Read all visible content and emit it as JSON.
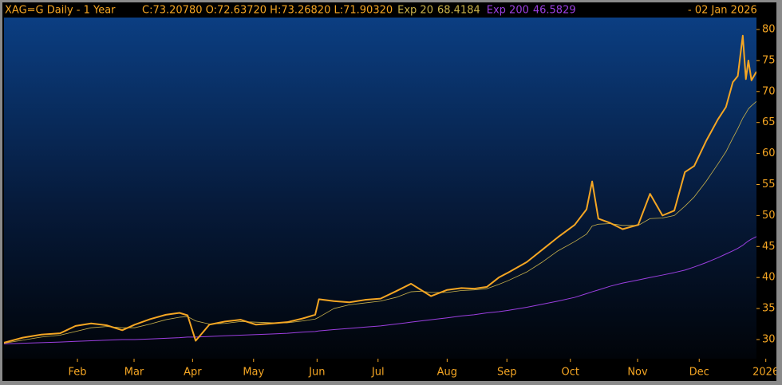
{
  "chart_data": {
    "type": "line",
    "title": "XAG=G Daily -  1 Year",
    "quote": "C:73.20780 O:72.63720 H:73.26820 L:71.90320",
    "date": "-    02 Jan 2026",
    "x": [
      0,
      0.3,
      0.6,
      0.9,
      1.15,
      1.4,
      1.65,
      1.9,
      2.1,
      2.35,
      2.6,
      2.82,
      2.95,
      3.08,
      3.3,
      3.55,
      3.8,
      4.05,
      4.3,
      4.55,
      4.8,
      5.0,
      5.06,
      5.3,
      5.55,
      5.8,
      6.05,
      6.3,
      6.54,
      6.7,
      6.86,
      7.12,
      7.35,
      7.55,
      7.76,
      7.95,
      8.1,
      8.4,
      8.65,
      8.9,
      9.17,
      9.36,
      9.45,
      9.55,
      9.74,
      9.94,
      10.19,
      10.38,
      10.58,
      10.77,
      10.94,
      11.09,
      11.28,
      11.47,
      11.6,
      11.71,
      11.79,
      11.87,
      11.92,
      11.96,
      12.01,
      12.09
    ],
    "series": [
      {
        "color": "#f5a623",
        "width": 2,
        "values": [
          29.5,
          30.3,
          30.8,
          31.0,
          32.2,
          32.6,
          32.3,
          31.5,
          32.4,
          33.3,
          34.0,
          34.3,
          33.9,
          29.8,
          32.4,
          32.9,
          33.2,
          32.4,
          32.6,
          32.8,
          33.4,
          34.0,
          36.5,
          36.2,
          36.0,
          36.4,
          36.6,
          37.8,
          39.0,
          38.0,
          37.0,
          38.0,
          38.3,
          38.2,
          38.5,
          40.0,
          40.8,
          42.5,
          44.5,
          46.5,
          48.5,
          51.0,
          55.5,
          49.5,
          48.8,
          47.8,
          48.5,
          53.5,
          50.0,
          50.8,
          57.0,
          58.0,
          62.0,
          65.5,
          67.5,
          71.5,
          72.5,
          79.0,
          72.0,
          75.0,
          71.8,
          73.2
        ]
      },
      {
        "name": "Exp 20",
        "last": "68.4184",
        "color": "#c9b24a",
        "width": 0.8,
        "values": [
          29.4,
          29.9,
          30.4,
          30.7,
          31.3,
          31.9,
          32.1,
          31.9,
          31.9,
          32.5,
          33.2,
          33.6,
          33.7,
          33.0,
          32.5,
          32.6,
          32.9,
          32.8,
          32.7,
          32.7,
          33.0,
          33.3,
          33.6,
          35.0,
          35.6,
          35.9,
          36.2,
          36.8,
          37.7,
          37.8,
          37.6,
          37.6,
          37.9,
          38.0,
          38.2,
          38.9,
          39.5,
          40.9,
          42.5,
          44.3,
          45.8,
          47.0,
          48.3,
          48.6,
          48.7,
          48.4,
          48.4,
          49.5,
          49.6,
          50.0,
          51.5,
          53.0,
          55.5,
          58.3,
          60.3,
          62.5,
          64.0,
          65.7,
          66.5,
          67.2,
          67.7,
          68.4
        ]
      },
      {
        "name": "Exp 200",
        "last": "46.5829",
        "color": "#9b3fe0",
        "width": 1,
        "values": [
          29.3,
          29.4,
          29.5,
          29.6,
          29.7,
          29.8,
          29.9,
          30.0,
          30.0,
          30.1,
          30.2,
          30.3,
          30.4,
          30.4,
          30.5,
          30.6,
          30.7,
          30.8,
          30.9,
          31.0,
          31.2,
          31.3,
          31.4,
          31.6,
          31.8,
          32.0,
          32.2,
          32.5,
          32.8,
          33.0,
          33.2,
          33.5,
          33.8,
          34.0,
          34.3,
          34.5,
          34.7,
          35.2,
          35.7,
          36.2,
          36.8,
          37.4,
          37.7,
          38.0,
          38.6,
          39.1,
          39.6,
          40.0,
          40.4,
          40.8,
          41.2,
          41.7,
          42.4,
          43.2,
          43.8,
          44.3,
          44.7,
          45.2,
          45.6,
          45.9,
          46.2,
          46.6
        ]
      }
    ],
    "xlim": [
      0,
      12.09
    ],
    "xticks": [
      {
        "value": 1.18,
        "label": "Feb"
      },
      {
        "value": 2.09,
        "label": "Mar"
      },
      {
        "value": 3.03,
        "label": "Apr"
      },
      {
        "value": 4.01,
        "label": "May"
      },
      {
        "value": 5.03,
        "label": "Jun"
      },
      {
        "value": 6.01,
        "label": "Jul"
      },
      {
        "value": 7.12,
        "label": "Aug"
      },
      {
        "value": 8.08,
        "label": "Sep"
      },
      {
        "value": 9.1,
        "label": "Oct"
      },
      {
        "value": 10.18,
        "label": "Nov"
      },
      {
        "value": 11.17,
        "label": "Dec"
      },
      {
        "value": 12.24,
        "label": "2026"
      }
    ],
    "ylim": [
      26.91,
      81.93
    ],
    "yticks": [
      30,
      35,
      40,
      45,
      50,
      55,
      60,
      65,
      70,
      75,
      80
    ],
    "yaxis_side": "right",
    "grid": false
  }
}
